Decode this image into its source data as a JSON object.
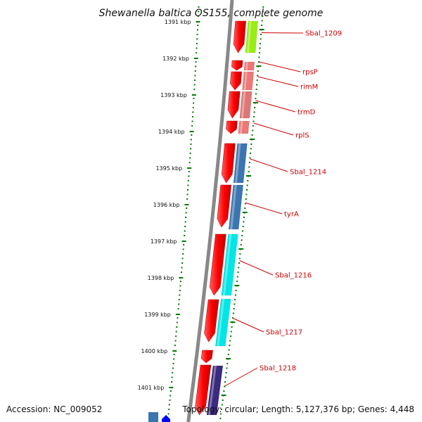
{
  "map": {
    "title": "Shewanella baltica OS155, complete genome",
    "accession": "Accession: NC_009052",
    "topology": "Topology: circular; Length: 5,127,376 bp; Genes: 4,448"
  },
  "colors": {
    "cds": "#ff0000",
    "backbone": "#888888",
    "scale_ticks": "#007a00",
    "label": "#cc0000"
  },
  "scale": [
    {
      "label": "1391 kbp"
    },
    {
      "label": "1392 kbp"
    },
    {
      "label": "1393 kbp"
    },
    {
      "label": "1394 kbp"
    },
    {
      "label": "1395 kbp"
    },
    {
      "label": "1396 kbp"
    },
    {
      "label": "1397 kbp"
    },
    {
      "label": "1398 kbp"
    },
    {
      "label": "1399 kbp"
    },
    {
      "label": "1400 kbp"
    },
    {
      "label": "1401 kbp"
    }
  ],
  "genes": [
    {
      "name": "Sbal_1209",
      "color": "#99ee11"
    },
    {
      "name": "rpsP",
      "color": "#ee7777"
    },
    {
      "name": "rimM",
      "color": "#ee7777"
    },
    {
      "name": "trmD",
      "color": "#dd7777"
    },
    {
      "name": "rplS",
      "color": "#ee7777"
    },
    {
      "name": "Sbal_1214",
      "color": "#3b76b0"
    },
    {
      "name": "tyrA",
      "color": "#3b76b0"
    },
    {
      "name": "Sbal_1216",
      "color": "#00e6e6"
    },
    {
      "name": "Sbal_1217",
      "color": "#00e6e6"
    },
    {
      "name": "Sbal_1218",
      "color": "#3a2a80"
    }
  ]
}
